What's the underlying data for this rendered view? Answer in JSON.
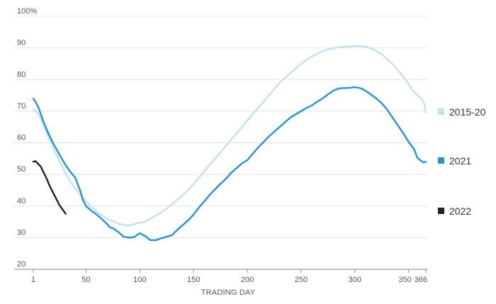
{
  "chart_data": {
    "type": "line",
    "title": "",
    "xlabel": "TRADING DAY",
    "ylabel": "",
    "xlim": [
      1,
      366
    ],
    "ylim": [
      20,
      100
    ],
    "x_ticks": [
      {
        "value": 1,
        "label": "1"
      },
      {
        "value": 50,
        "label": "50"
      },
      {
        "value": 100,
        "label": "100"
      },
      {
        "value": 150,
        "label": "150"
      },
      {
        "value": 200,
        "label": "200"
      },
      {
        "value": 250,
        "label": "250"
      },
      {
        "value": 300,
        "label": "300"
      },
      {
        "value": 350,
        "label": "350"
      },
      {
        "value": 366,
        "label": "366"
      }
    ],
    "y_ticks": [
      {
        "value": 100,
        "label": "100%"
      },
      {
        "value": 90,
        "label": "90"
      },
      {
        "value": 80,
        "label": "80"
      },
      {
        "value": 70,
        "label": "70"
      },
      {
        "value": 60,
        "label": "60"
      },
      {
        "value": 50,
        "label": "50"
      },
      {
        "value": 40,
        "label": "40"
      },
      {
        "value": 30,
        "label": "30"
      },
      {
        "value": 20,
        "label": "20"
      }
    ],
    "grid": true,
    "legend_position": "right",
    "series": [
      {
        "name": "2015-20",
        "color": "#c5e0f3",
        "points": [
          [
            1,
            70.5
          ],
          [
            5,
            69.5
          ],
          [
            10,
            66
          ],
          [
            15,
            62
          ],
          [
            20,
            58
          ],
          [
            25,
            54.5
          ],
          [
            30,
            51
          ],
          [
            35,
            48
          ],
          [
            40,
            45.5
          ],
          [
            45,
            43.5
          ],
          [
            50,
            41.5
          ],
          [
            55,
            39.8
          ],
          [
            60,
            38.2
          ],
          [
            65,
            37
          ],
          [
            70,
            36
          ],
          [
            75,
            35.2
          ],
          [
            80,
            34.5
          ],
          [
            85,
            34
          ],
          [
            90,
            33.8
          ],
          [
            95,
            34.3
          ],
          [
            100,
            34.8
          ],
          [
            105,
            35
          ],
          [
            110,
            36
          ],
          [
            115,
            37
          ],
          [
            120,
            38
          ],
          [
            125,
            39.2
          ],
          [
            130,
            40.5
          ],
          [
            135,
            42
          ],
          [
            140,
            43.5
          ],
          [
            145,
            45
          ],
          [
            150,
            47
          ],
          [
            155,
            49
          ],
          [
            160,
            51
          ],
          [
            165,
            53
          ],
          [
            170,
            55
          ],
          [
            175,
            57
          ],
          [
            180,
            59
          ],
          [
            185,
            61
          ],
          [
            190,
            63
          ],
          [
            195,
            65
          ],
          [
            200,
            67
          ],
          [
            205,
            69
          ],
          [
            210,
            71
          ],
          [
            215,
            73
          ],
          [
            220,
            75
          ],
          [
            225,
            77
          ],
          [
            230,
            79
          ],
          [
            235,
            80.5
          ],
          [
            240,
            82
          ],
          [
            245,
            83.5
          ],
          [
            250,
            85
          ],
          [
            255,
            86.2
          ],
          [
            260,
            87.3
          ],
          [
            265,
            88.2
          ],
          [
            270,
            89
          ],
          [
            275,
            89.5
          ],
          [
            280,
            89.9
          ],
          [
            285,
            90.2
          ],
          [
            290,
            90.4
          ],
          [
            295,
            90.5
          ],
          [
            300,
            90.6
          ],
          [
            305,
            90.6
          ],
          [
            310,
            90.4
          ],
          [
            315,
            89.8
          ],
          [
            320,
            89
          ],
          [
            325,
            88
          ],
          [
            330,
            86.5
          ],
          [
            335,
            85
          ],
          [
            340,
            83
          ],
          [
            345,
            81
          ],
          [
            350,
            78.5
          ],
          [
            355,
            76
          ],
          [
            360,
            74.5
          ],
          [
            363,
            73.5
          ],
          [
            365,
            72
          ],
          [
            366,
            69.5
          ]
        ]
      },
      {
        "name": "2021",
        "color": "#1f97d4",
        "points": [
          [
            1,
            74
          ],
          [
            3,
            73
          ],
          [
            6,
            71
          ],
          [
            10,
            67
          ],
          [
            15,
            63
          ],
          [
            20,
            59.5
          ],
          [
            25,
            56.5
          ],
          [
            30,
            53.5
          ],
          [
            35,
            51
          ],
          [
            40,
            49
          ],
          [
            45,
            44.5
          ],
          [
            47,
            42
          ],
          [
            50,
            40
          ],
          [
            55,
            38.5
          ],
          [
            60,
            37.3
          ],
          [
            65,
            35.8
          ],
          [
            70,
            34.2
          ],
          [
            72,
            33.3
          ],
          [
            75,
            33
          ],
          [
            80,
            31.8
          ],
          [
            85,
            30.3
          ],
          [
            90,
            30
          ],
          [
            95,
            30.2
          ],
          [
            98,
            31
          ],
          [
            100,
            31.4
          ],
          [
            105,
            30.5
          ],
          [
            110,
            29.2
          ],
          [
            115,
            29.2
          ],
          [
            120,
            29.8
          ],
          [
            125,
            30.3
          ],
          [
            130,
            30.8
          ],
          [
            135,
            32.5
          ],
          [
            140,
            34
          ],
          [
            145,
            35.5
          ],
          [
            150,
            37.3
          ],
          [
            155,
            39.5
          ],
          [
            160,
            41.5
          ],
          [
            165,
            43.5
          ],
          [
            170,
            45.3
          ],
          [
            175,
            47
          ],
          [
            180,
            48.6
          ],
          [
            185,
            50.5
          ],
          [
            190,
            52
          ],
          [
            195,
            53.5
          ],
          [
            200,
            54.5
          ],
          [
            205,
            56.5
          ],
          [
            210,
            58.5
          ],
          [
            215,
            60.2
          ],
          [
            220,
            62
          ],
          [
            225,
            63.5
          ],
          [
            230,
            65
          ],
          [
            235,
            66.5
          ],
          [
            240,
            68
          ],
          [
            245,
            69
          ],
          [
            250,
            70
          ],
          [
            255,
            71
          ],
          [
            260,
            71.8
          ],
          [
            265,
            73
          ],
          [
            270,
            74
          ],
          [
            275,
            75.3
          ],
          [
            280,
            76.5
          ],
          [
            285,
            77.2
          ],
          [
            290,
            77.3
          ],
          [
            295,
            77.4
          ],
          [
            300,
            77.6
          ],
          [
            305,
            77.3
          ],
          [
            308,
            76.8
          ],
          [
            312,
            76
          ],
          [
            316,
            75
          ],
          [
            320,
            74
          ],
          [
            325,
            72.5
          ],
          [
            330,
            70.5
          ],
          [
            335,
            68
          ],
          [
            340,
            65.5
          ],
          [
            345,
            63
          ],
          [
            350,
            60.3
          ],
          [
            355,
            58
          ],
          [
            358,
            55.3
          ],
          [
            362,
            54.2
          ],
          [
            364,
            53.8
          ],
          [
            366,
            54
          ]
        ]
      },
      {
        "name": "2022",
        "color": "#222222",
        "points": [
          [
            1,
            54
          ],
          [
            3,
            54.2
          ],
          [
            5,
            53.5
          ],
          [
            8,
            52.5
          ],
          [
            10,
            51
          ],
          [
            13,
            49
          ],
          [
            16,
            46.5
          ],
          [
            19,
            44.5
          ],
          [
            22,
            42.5
          ],
          [
            25,
            40.5
          ],
          [
            28,
            39
          ],
          [
            31,
            37.6
          ]
        ]
      }
    ]
  }
}
